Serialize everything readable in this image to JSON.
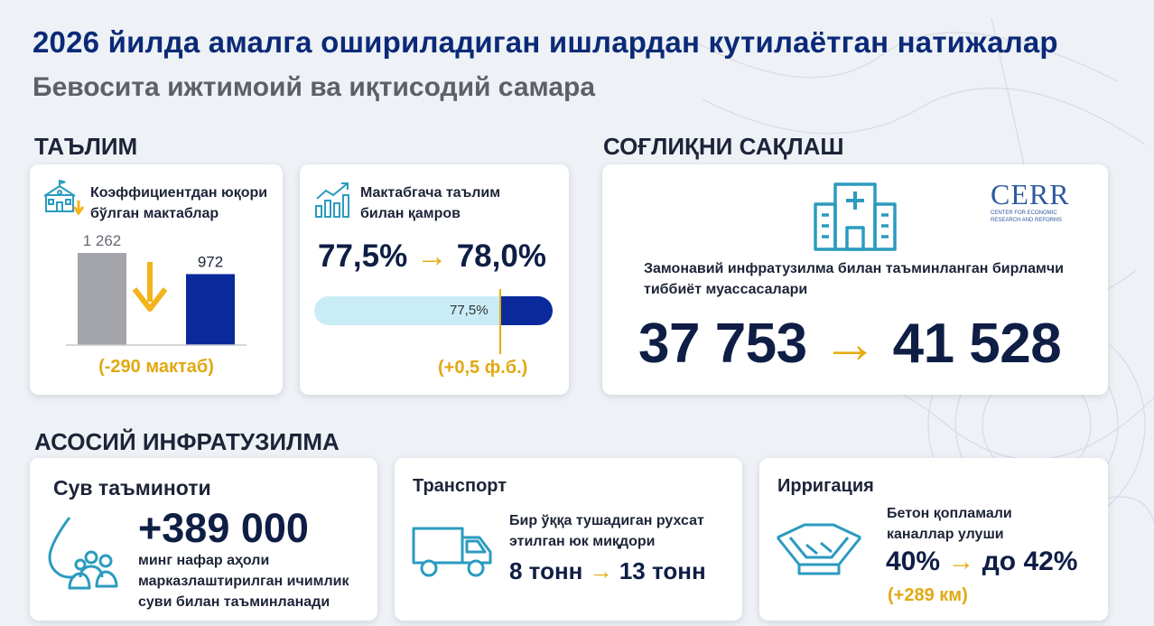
{
  "header": {
    "title": "2026 йилда амалга ошириладиган ишлардан кутилаётган натижалар",
    "subtitle": "Бевосита ижтимоий ва иқтисодий самара"
  },
  "education": {
    "section_title": "ТАЪЛИМ",
    "schools": {
      "label": "Коэффициентдан юқори бўлган мактаблар",
      "before": 1262,
      "before_text": "1 262",
      "after": 972,
      "after_text": "972",
      "change_text": "(-290 мактаб)",
      "colors": {
        "before": "#a3a5ab",
        "after": "#0a2a9c",
        "arrow": "#f2b41a"
      }
    },
    "preschool": {
      "label": "Мактабгача таълим билан қамров",
      "from": "77,5%",
      "arrow": "→",
      "to": "78,0%",
      "bar_marker_text": "77,5%",
      "progress_value": 0.78,
      "change_text": "(+0,5 ф.б.)",
      "colors": {
        "bar_base": "#c9ecf7",
        "bar_fill": "#0a2a9c"
      }
    }
  },
  "health": {
    "section_title": "СОҒЛИҚНИ САҚЛАШ",
    "logo_text": "CERR",
    "logo_subtext_1": "CENTER FOR ECONOMIC",
    "logo_subtext_2": "RESEARCH AND REFORMS",
    "label": "Замонавий инфратузилма билан таъминланган бирламчи тиббиёт муассасалари",
    "from": "37 753",
    "arrow": "→",
    "to": "41 528",
    "icon": "hospital-icon"
  },
  "infrastructure": {
    "section_title": "АСОСИЙ ИНФРАТУЗИЛМА",
    "water": {
      "title": "Сув таъминоти",
      "value": "+389 000",
      "description": "минг нафар аҳоли марказлаштирилган ичимлик суви билан таъминланади",
      "icon": "water-people-icon"
    },
    "transport": {
      "title": "Транспорт",
      "label": "Бир ўққа тушадиган рухсат этилган юк миқдори",
      "from": "8 тонн",
      "arrow": "→",
      "to": "13 тонн",
      "icon": "truck-icon"
    },
    "irrigation": {
      "title": "Ирригация",
      "label": "Бетон қопламали каналлар улуши",
      "from": "40%",
      "arrow": "→",
      "to": "до 42%",
      "change_text": "(+289 км)",
      "icon": "canal-icon"
    }
  }
}
